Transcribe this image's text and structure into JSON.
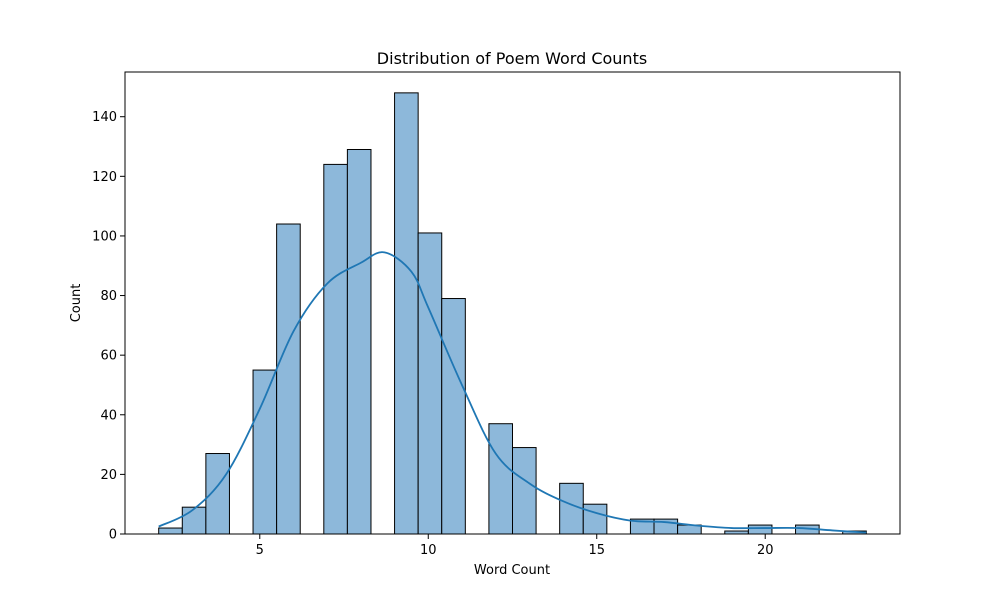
{
  "chart_data": {
    "type": "bar",
    "title": "Distribution of Poem Word Counts",
    "xlabel": "Word Count",
    "ylabel": "Count",
    "xlim": [
      1.0,
      24.0
    ],
    "ylim": [
      0,
      155
    ],
    "xticks": [
      5,
      10,
      15,
      20
    ],
    "yticks": [
      0,
      20,
      40,
      60,
      80,
      100,
      120,
      140
    ],
    "bin_width": 0.7,
    "bins": [
      {
        "x0": 2.0,
        "count": 2
      },
      {
        "x0": 2.7,
        "count": 9
      },
      {
        "x0": 3.4,
        "count": 27
      },
      {
        "x0": 4.1,
        "count": 0
      },
      {
        "x0": 4.8,
        "count": 55
      },
      {
        "x0": 5.5,
        "count": 104
      },
      {
        "x0": 6.2,
        "count": 0
      },
      {
        "x0": 6.9,
        "count": 124
      },
      {
        "x0": 7.6,
        "count": 129
      },
      {
        "x0": 8.3,
        "count": 0
      },
      {
        "x0": 9.0,
        "count": 148
      },
      {
        "x0": 9.7,
        "count": 101
      },
      {
        "x0": 10.4,
        "count": 79
      },
      {
        "x0": 11.1,
        "count": 0
      },
      {
        "x0": 11.8,
        "count": 37
      },
      {
        "x0": 12.5,
        "count": 29
      },
      {
        "x0": 13.2,
        "count": 0
      },
      {
        "x0": 13.9,
        "count": 17
      },
      {
        "x0": 14.6,
        "count": 10
      },
      {
        "x0": 15.3,
        "count": 0
      },
      {
        "x0": 16.0,
        "count": 5
      },
      {
        "x0": 16.7,
        "count": 5
      },
      {
        "x0": 17.4,
        "count": 3
      },
      {
        "x0": 18.1,
        "count": 0
      },
      {
        "x0": 18.8,
        "count": 1
      },
      {
        "x0": 19.5,
        "count": 3
      },
      {
        "x0": 20.2,
        "count": 0
      },
      {
        "x0": 20.9,
        "count": 3
      },
      {
        "x0": 21.6,
        "count": 0
      },
      {
        "x0": 22.3,
        "count": 1
      }
    ],
    "kde": {
      "x": [
        2.0,
        3.0,
        4.0,
        5.0,
        6.0,
        7.0,
        8.0,
        8.7,
        9.5,
        10.0,
        11.0,
        12.0,
        13.0,
        14.0,
        15.0,
        16.0,
        17.0,
        18.0,
        19.0,
        20.0,
        21.0,
        22.0,
        23.0
      ],
      "y": [
        2.5,
        8,
        20,
        42,
        68,
        84,
        91,
        94.5,
        88,
        76,
        50,
        27,
        17,
        11,
        7,
        4.5,
        4,
        2.8,
        2,
        2,
        2,
        1.2,
        0.5
      ]
    },
    "colors": {
      "bar_fill": "#8db8da",
      "bar_edge": "#000000",
      "kde_line": "#1f77b4"
    },
    "grid": false,
    "legend": "none"
  }
}
